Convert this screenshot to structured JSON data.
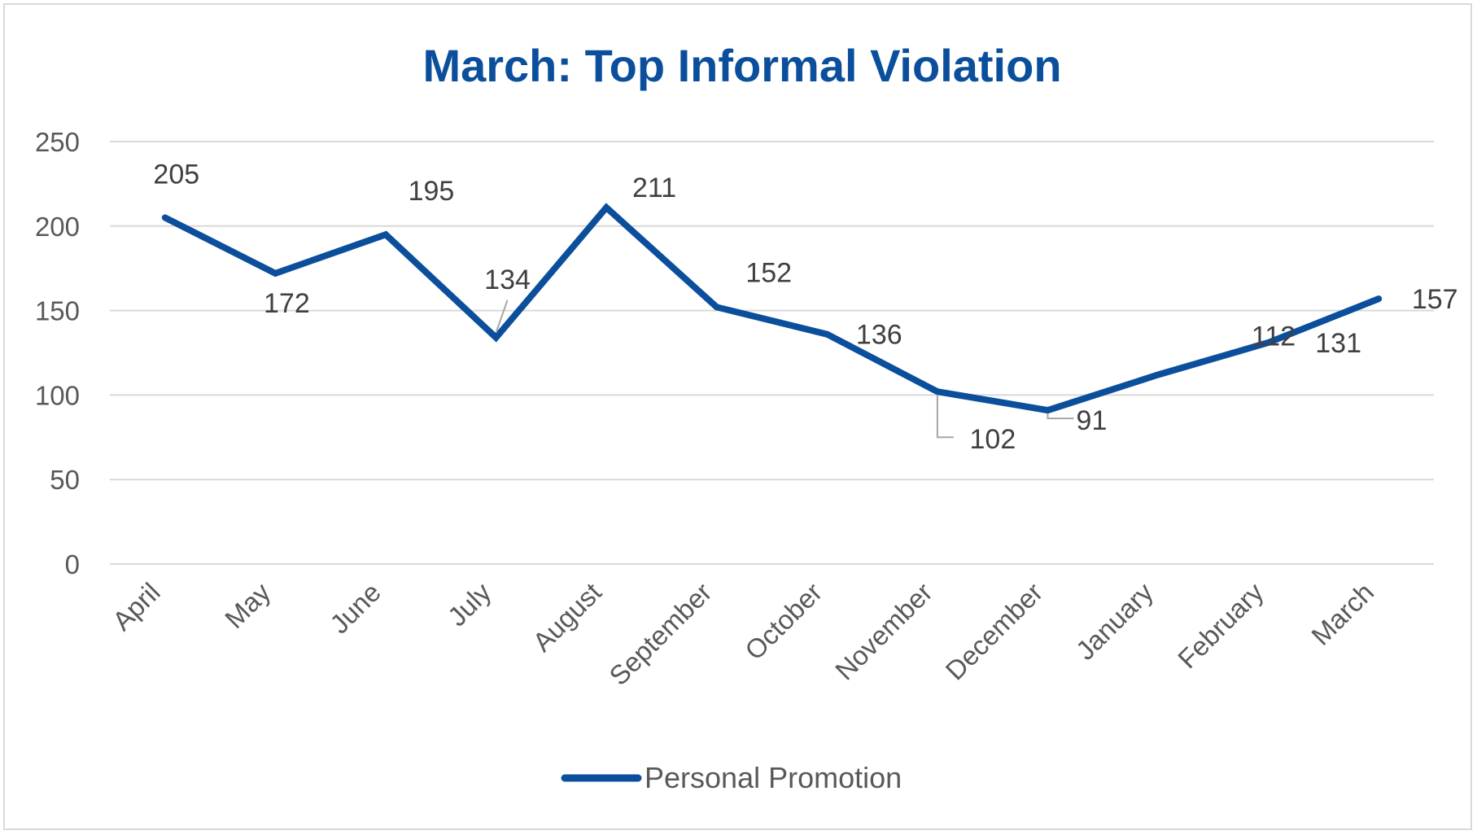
{
  "chart_data": {
    "type": "line",
    "title": "March: Top Informal Violation",
    "categories": [
      "April",
      "May",
      "June",
      "July",
      "August",
      "September",
      "October",
      "November",
      "December",
      "January",
      "February",
      "March"
    ],
    "series": [
      {
        "name": "Personal Promotion",
        "values": [
          205,
          172,
          195,
          134,
          211,
          152,
          136,
          102,
          91,
          112,
          131,
          157
        ],
        "color": "#0b4f9c"
      }
    ],
    "ylim": [
      0,
      250
    ],
    "yticks": [
      "0",
      "50",
      "100",
      "150",
      "200",
      "250"
    ],
    "grid": true,
    "legend_position": "bottom",
    "xlabel": "",
    "ylabel": ""
  }
}
